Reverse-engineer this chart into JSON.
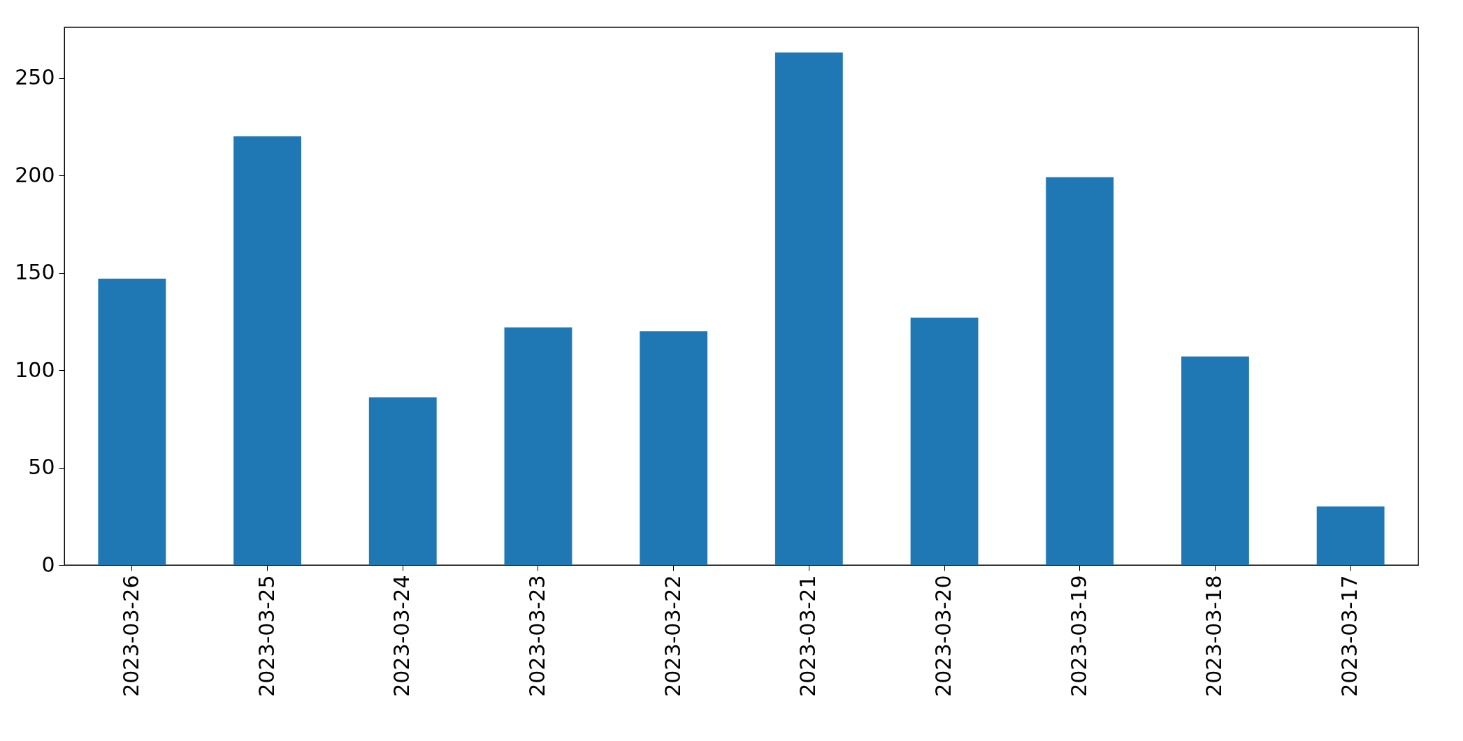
{
  "chart_data": {
    "type": "bar",
    "categories": [
      "2023-03-26",
      "2023-03-25",
      "2023-03-24",
      "2023-03-23",
      "2023-03-22",
      "2023-03-21",
      "2023-03-20",
      "2023-03-19",
      "2023-03-18",
      "2023-03-17"
    ],
    "values": [
      147,
      220,
      86,
      122,
      120,
      263,
      127,
      199,
      107,
      30
    ],
    "color": "#1f77b4",
    "ylim": [
      0,
      276
    ],
    "yticks": [
      0,
      50,
      100,
      150,
      200,
      250
    ],
    "grid": false
  }
}
